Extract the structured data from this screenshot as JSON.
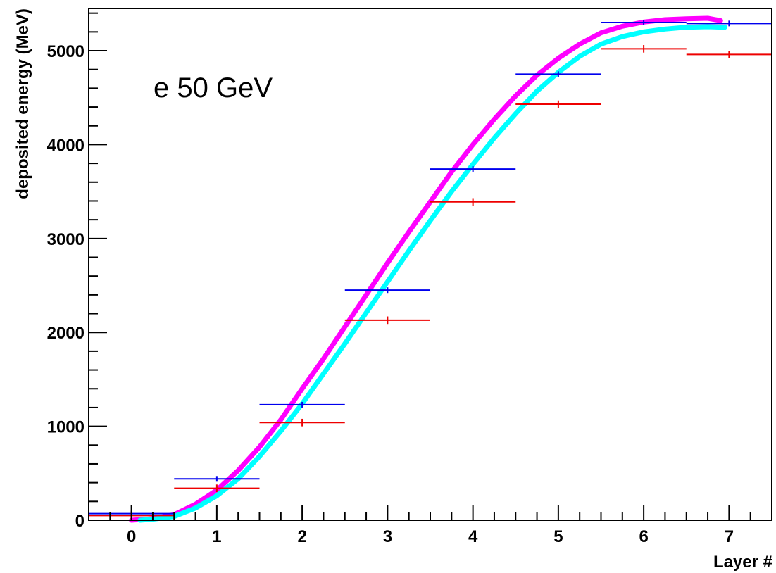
{
  "chart_data": {
    "type": "line",
    "title": "",
    "annotation": "e 50 GeV",
    "xlabel": "Layer #",
    "ylabel": "deposited energy (MeV)",
    "xlim": [
      -0.5,
      7.5
    ],
    "ylim": [
      0,
      5450
    ],
    "x_ticks": [
      0,
      1,
      2,
      3,
      4,
      5,
      6,
      7
    ],
    "y_ticks": [
      0,
      1000,
      2000,
      3000,
      4000,
      5000
    ],
    "grid": false,
    "legend": "none",
    "series": [
      {
        "kind": "curve",
        "color": "#ff00ff",
        "x": [
          0.0,
          0.25,
          0.5,
          0.75,
          1.0,
          1.25,
          1.5,
          1.75,
          2.0,
          2.25,
          2.5,
          2.75,
          3.0,
          3.25,
          3.5,
          3.75,
          4.0,
          4.25,
          4.5,
          4.75,
          5.0,
          5.25,
          5.5,
          5.75,
          6.0,
          6.25,
          6.5,
          6.75,
          6.9
        ],
        "y": [
          0,
          15,
          60,
          170,
          320,
          530,
          780,
          1070,
          1400,
          1720,
          2060,
          2400,
          2740,
          3070,
          3390,
          3710,
          4000,
          4270,
          4520,
          4740,
          4920,
          5070,
          5190,
          5260,
          5305,
          5330,
          5340,
          5345,
          5320
        ]
      },
      {
        "kind": "curve",
        "color": "#00ffff",
        "x": [
          0.1,
          0.25,
          0.5,
          0.75,
          1.0,
          1.25,
          1.5,
          1.75,
          2.0,
          2.25,
          2.5,
          2.75,
          3.0,
          3.25,
          3.5,
          3.75,
          4.0,
          4.25,
          4.5,
          4.75,
          5.0,
          5.25,
          5.5,
          5.75,
          6.0,
          6.25,
          6.5,
          6.75,
          6.95
        ],
        "y": [
          0,
          10,
          40,
          130,
          260,
          440,
          680,
          950,
          1240,
          1560,
          1880,
          2210,
          2540,
          2870,
          3190,
          3500,
          3790,
          4070,
          4330,
          4570,
          4770,
          4940,
          5070,
          5150,
          5200,
          5230,
          5250,
          5255,
          5250
        ]
      },
      {
        "kind": "errorbar",
        "color": "#0000ee",
        "x": [
          0,
          1,
          2,
          3,
          4,
          5,
          6,
          7
        ],
        "y": [
          70,
          440,
          1230,
          2450,
          3740,
          4750,
          5300,
          5290
        ],
        "xerr": 0.5,
        "yerr": 30
      },
      {
        "kind": "errorbar",
        "color": "#ee0000",
        "x": [
          0,
          1,
          2,
          3,
          4,
          5,
          6,
          7
        ],
        "y": [
          50,
          340,
          1040,
          2130,
          3390,
          4430,
          5020,
          4960
        ],
        "xerr": 0.5,
        "yerr": 40
      }
    ]
  }
}
